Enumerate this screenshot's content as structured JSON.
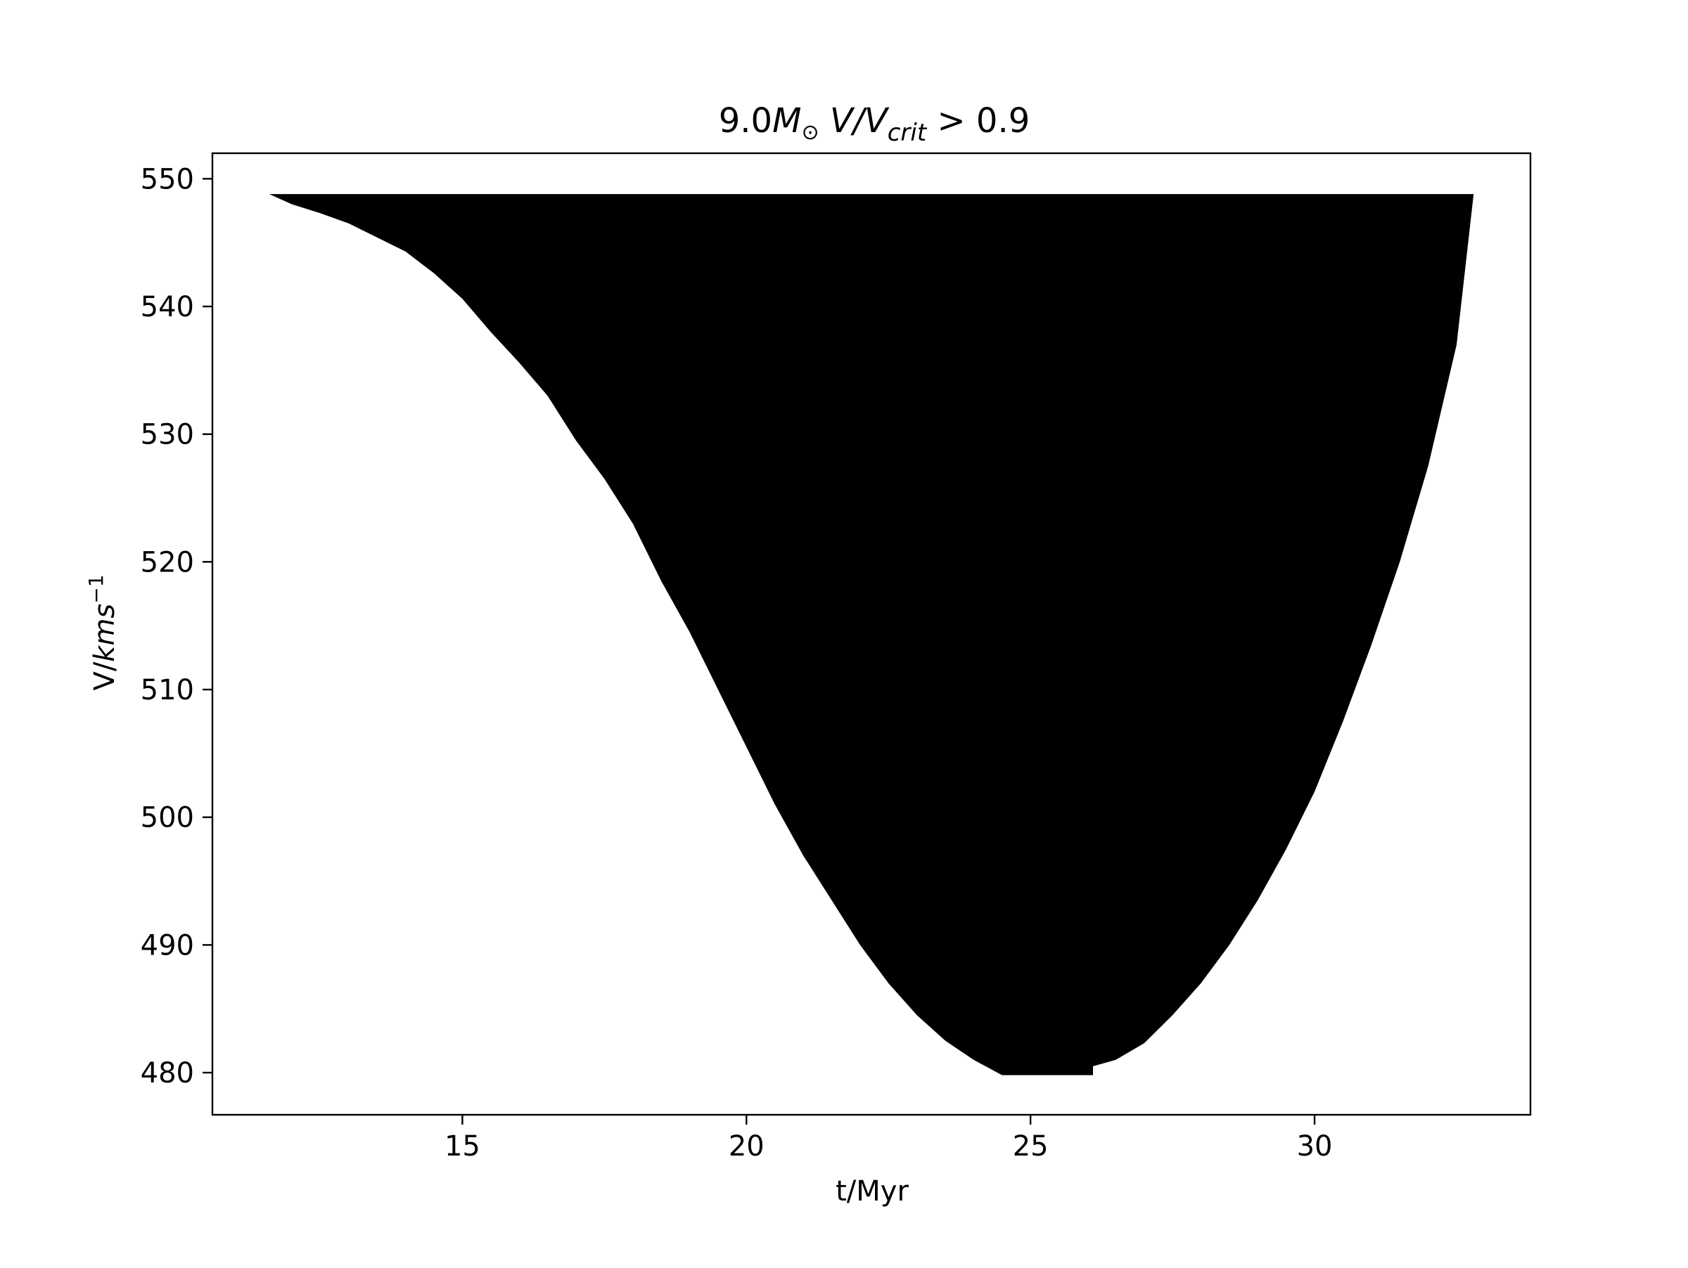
{
  "chart_data": {
    "type": "area",
    "title": {
      "mass": "9.0",
      "mass_symbol": "M",
      "sun_symbol": "⊙",
      "ratio_text": "V/V",
      "ratio_sub": "crit",
      "condition": "> 0.9"
    },
    "xlabel": "t/Myr",
    "ylabel": {
      "prefix": "V/",
      "units": "kms",
      "exponent": "−1"
    },
    "xlim": [
      10.6,
      33.8
    ],
    "ylim": [
      476.7,
      552.0
    ],
    "x_ticks": [
      {
        "value": 15,
        "label": "15"
      },
      {
        "value": 20,
        "label": "20"
      },
      {
        "value": 25,
        "label": "25"
      },
      {
        "value": 30,
        "label": "30"
      }
    ],
    "y_ticks": [
      {
        "value": 480,
        "label": "480"
      },
      {
        "value": 490,
        "label": "490"
      },
      {
        "value": 500,
        "label": "500"
      },
      {
        "value": 510,
        "label": "510"
      },
      {
        "value": 520,
        "label": "520"
      },
      {
        "value": 530,
        "label": "530"
      },
      {
        "value": 540,
        "label": "540"
      },
      {
        "value": 550,
        "label": "550"
      }
    ],
    "grid": false,
    "fill_color": "#000000",
    "v_top": 548.8,
    "region_left_boundary": [
      {
        "t": 11.6,
        "v": 548.8
      },
      {
        "t": 12.0,
        "v": 548.0
      },
      {
        "t": 12.5,
        "v": 547.3
      },
      {
        "t": 13.0,
        "v": 546.5
      },
      {
        "t": 13.5,
        "v": 545.4
      },
      {
        "t": 14.0,
        "v": 544.3
      },
      {
        "t": 14.5,
        "v": 542.6
      },
      {
        "t": 15.0,
        "v": 540.6
      },
      {
        "t": 15.5,
        "v": 538.0
      },
      {
        "t": 16.0,
        "v": 535.6
      },
      {
        "t": 16.5,
        "v": 533.0
      },
      {
        "t": 17.0,
        "v": 529.5
      },
      {
        "t": 17.5,
        "v": 526.5
      },
      {
        "t": 18.0,
        "v": 523.0
      },
      {
        "t": 18.5,
        "v": 518.5
      },
      {
        "t": 19.0,
        "v": 514.5
      },
      {
        "t": 19.5,
        "v": 510.0
      },
      {
        "t": 20.0,
        "v": 505.5
      },
      {
        "t": 20.5,
        "v": 501.0
      },
      {
        "t": 21.0,
        "v": 497.0
      },
      {
        "t": 21.5,
        "v": 493.5
      },
      {
        "t": 22.0,
        "v": 490.0
      },
      {
        "t": 22.5,
        "v": 487.0
      },
      {
        "t": 23.0,
        "v": 484.5
      },
      {
        "t": 23.5,
        "v": 482.5
      },
      {
        "t": 24.0,
        "v": 481.0
      },
      {
        "t": 24.5,
        "v": 479.8
      },
      {
        "t": 25.0,
        "v": 479.8
      },
      {
        "t": 25.5,
        "v": 479.8
      },
      {
        "t": 26.1,
        "v": 479.8
      }
    ],
    "region_right_boundary": [
      {
        "t": 26.1,
        "v": 480.5
      },
      {
        "t": 26.5,
        "v": 481.0
      },
      {
        "t": 27.0,
        "v": 482.3
      },
      {
        "t": 27.5,
        "v": 484.5
      },
      {
        "t": 28.0,
        "v": 487.0
      },
      {
        "t": 28.5,
        "v": 490.0
      },
      {
        "t": 29.0,
        "v": 493.5
      },
      {
        "t": 29.5,
        "v": 497.5
      },
      {
        "t": 30.0,
        "v": 502.0
      },
      {
        "t": 30.5,
        "v": 507.5
      },
      {
        "t": 31.0,
        "v": 513.5
      },
      {
        "t": 31.5,
        "v": 520.0
      },
      {
        "t": 32.0,
        "v": 527.5
      },
      {
        "t": 32.5,
        "v": 537.0
      },
      {
        "t": 32.8,
        "v": 548.8
      }
    ]
  }
}
